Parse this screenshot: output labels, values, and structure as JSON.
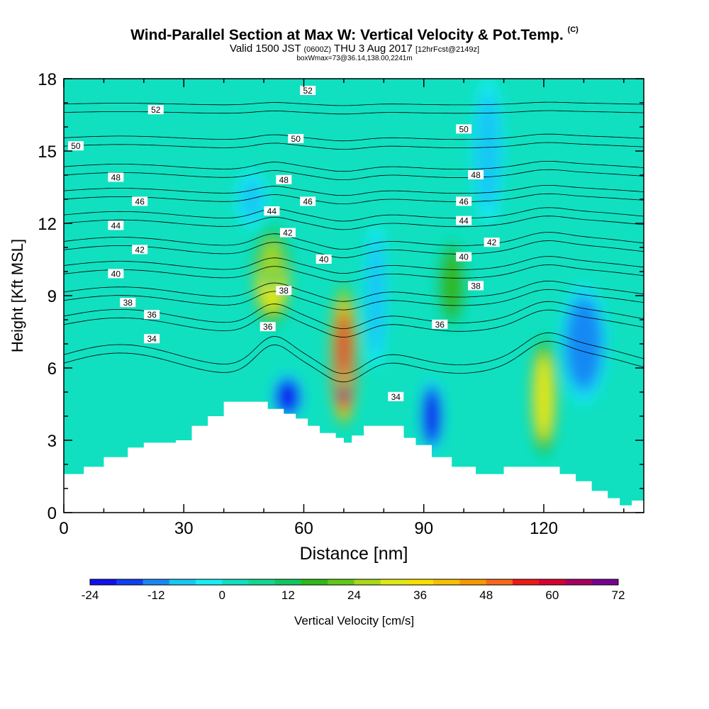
{
  "title": "Wind-Parallel Section at Max W: Vertical Velocity & Pot.Temp.",
  "title_copyright": "(C)",
  "subtitle": {
    "valid": "Valid 1500 JST",
    "utc": "(0600Z)",
    "date": "THU 3 Aug 2017",
    "forecast": "[12hrFcst@2149z]"
  },
  "subtitle2": "boxWmax=73@36.14,138.00,2241m",
  "chart_data": {
    "type": "heatmap",
    "xlabel": "Distance [nm]",
    "ylabel": "Height [Kft MSL]",
    "xlim": [
      0,
      145
    ],
    "ylim": [
      0,
      18
    ],
    "x_ticks": [
      0,
      30,
      60,
      90,
      120
    ],
    "y_ticks": [
      0,
      3,
      6,
      9,
      12,
      15,
      18
    ],
    "colorbar": {
      "label": "Vertical Velocity [cm/s]",
      "tick_labels": [
        -24,
        -12,
        0,
        12,
        24,
        36,
        48,
        60,
        72
      ],
      "colors": [
        "#1010ee",
        "#1040f4",
        "#1888f4",
        "#18c8f4",
        "#18eef4",
        "#10e0c0",
        "#10d890",
        "#10c860",
        "#30b818",
        "#60c818",
        "#a8d818",
        "#e0e818",
        "#f8e000",
        "#f8c000",
        "#f89800",
        "#f86818",
        "#f01818",
        "#d80030",
        "#a80060",
        "#780090"
      ]
    },
    "terrain": [
      [
        0,
        1.6
      ],
      [
        5,
        1.9
      ],
      [
        10,
        2.3
      ],
      [
        16,
        2.7
      ],
      [
        20,
        2.9
      ],
      [
        28,
        3.0
      ],
      [
        32,
        3.6
      ],
      [
        36,
        4.0
      ],
      [
        40,
        4.6
      ],
      [
        48,
        4.6
      ],
      [
        51,
        4.3
      ],
      [
        55,
        4.1
      ],
      [
        58,
        3.9
      ],
      [
        61,
        3.6
      ],
      [
        64,
        3.3
      ],
      [
        68,
        3.1
      ],
      [
        70,
        2.9
      ],
      [
        72,
        3.2
      ],
      [
        75,
        3.6
      ],
      [
        82,
        3.6
      ],
      [
        85,
        3.1
      ],
      [
        88,
        2.8
      ],
      [
        92,
        2.3
      ],
      [
        97,
        1.9
      ],
      [
        103,
        1.6
      ],
      [
        110,
        1.9
      ],
      [
        120,
        1.9
      ],
      [
        124,
        1.6
      ],
      [
        128,
        1.3
      ],
      [
        132,
        0.9
      ],
      [
        136,
        0.6
      ],
      [
        139,
        0.3
      ],
      [
        142,
        0.5
      ],
      [
        145,
        0.7
      ]
    ],
    "vertical_velocity_cells": [
      {
        "x": 52,
        "y": 9.8,
        "rx": 5,
        "ry": 2.2,
        "w": 30
      },
      {
        "x": 52,
        "y": 10.5,
        "rx": 3,
        "ry": 1.2,
        "w": 24
      },
      {
        "x": 70,
        "y": 6.5,
        "rx": 3.5,
        "ry": 3,
        "w": 72
      },
      {
        "x": 70,
        "y": 7,
        "rx": 2,
        "ry": 2,
        "w": 60
      },
      {
        "x": 120,
        "y": 4.8,
        "rx": 3.5,
        "ry": 2.6,
        "w": 30
      },
      {
        "x": 97,
        "y": 9.5,
        "rx": 4,
        "ry": 2,
        "w": 18
      },
      {
        "x": 56,
        "y": 4.8,
        "rx": 4,
        "ry": 1,
        "w": -22
      },
      {
        "x": 92,
        "y": 4,
        "rx": 3,
        "ry": 1.6,
        "w": -20
      },
      {
        "x": 130,
        "y": 7,
        "rx": 6,
        "ry": 2.5,
        "w": -14
      },
      {
        "x": 47,
        "y": 13,
        "rx": 4,
        "ry": 1.2,
        "w": -6
      },
      {
        "x": 106,
        "y": 15,
        "rx": 4,
        "ry": 3,
        "w": -8
      },
      {
        "x": 78,
        "y": 9,
        "rx": 3,
        "ry": 3,
        "w": -8
      }
    ],
    "theta_isentropes": [
      {
        "level": 34,
        "base": 6.2,
        "dip": 1.2
      },
      {
        "level": 36,
        "base": 7.8,
        "dip": 0.8
      },
      {
        "level": 38,
        "base": 8.8,
        "dip": 0.6
      },
      {
        "level": 40,
        "base": 9.9,
        "dip": 0.5
      },
      {
        "level": 42,
        "base": 10.9,
        "dip": 0.5
      },
      {
        "level": 44,
        "base": 12.0,
        "dip": 0.4
      },
      {
        "level": 46,
        "base": 13.0,
        "dip": 0.3
      },
      {
        "level": 48,
        "base": 14.0,
        "dip": 0.3
      },
      {
        "level": 50,
        "base": 15.2,
        "dip": 0.2
      },
      {
        "level": 52,
        "base": 16.6,
        "dip": 0.1
      }
    ],
    "contour_labels": [
      {
        "text": "52",
        "x": 23,
        "y": 16.7
      },
      {
        "text": "52",
        "x": 61,
        "y": 17.5
      },
      {
        "text": "50",
        "x": 3,
        "y": 15.2
      },
      {
        "text": "50",
        "x": 58,
        "y": 15.5
      },
      {
        "text": "50",
        "x": 100,
        "y": 15.9
      },
      {
        "text": "48",
        "x": 13,
        "y": 13.9
      },
      {
        "text": "48",
        "x": 55,
        "y": 13.8
      },
      {
        "text": "48",
        "x": 103,
        "y": 14
      },
      {
        "text": "46",
        "x": 19,
        "y": 12.9
      },
      {
        "text": "46",
        "x": 61,
        "y": 12.9
      },
      {
        "text": "46",
        "x": 100,
        "y": 12.9
      },
      {
        "text": "44",
        "x": 13,
        "y": 11.9
      },
      {
        "text": "44",
        "x": 52,
        "y": 12.5
      },
      {
        "text": "44",
        "x": 100,
        "y": 12.1
      },
      {
        "text": "42",
        "x": 19,
        "y": 10.9
      },
      {
        "text": "42",
        "x": 56,
        "y": 11.6
      },
      {
        "text": "42",
        "x": 107,
        "y": 11.2
      },
      {
        "text": "40",
        "x": 13,
        "y": 9.9
      },
      {
        "text": "40",
        "x": 65,
        "y": 10.5
      },
      {
        "text": "40",
        "x": 100,
        "y": 10.6
      },
      {
        "text": "38",
        "x": 16,
        "y": 8.7
      },
      {
        "text": "38",
        "x": 55,
        "y": 9.2
      },
      {
        "text": "38",
        "x": 103,
        "y": 9.4
      },
      {
        "text": "36",
        "x": 22,
        "y": 8.2
      },
      {
        "text": "36",
        "x": 51,
        "y": 7.7
      },
      {
        "text": "36",
        "x": 94,
        "y": 7.8
      },
      {
        "text": "34",
        "x": 22,
        "y": 7.2
      },
      {
        "text": "34",
        "x": 83,
        "y": 4.8
      }
    ]
  }
}
